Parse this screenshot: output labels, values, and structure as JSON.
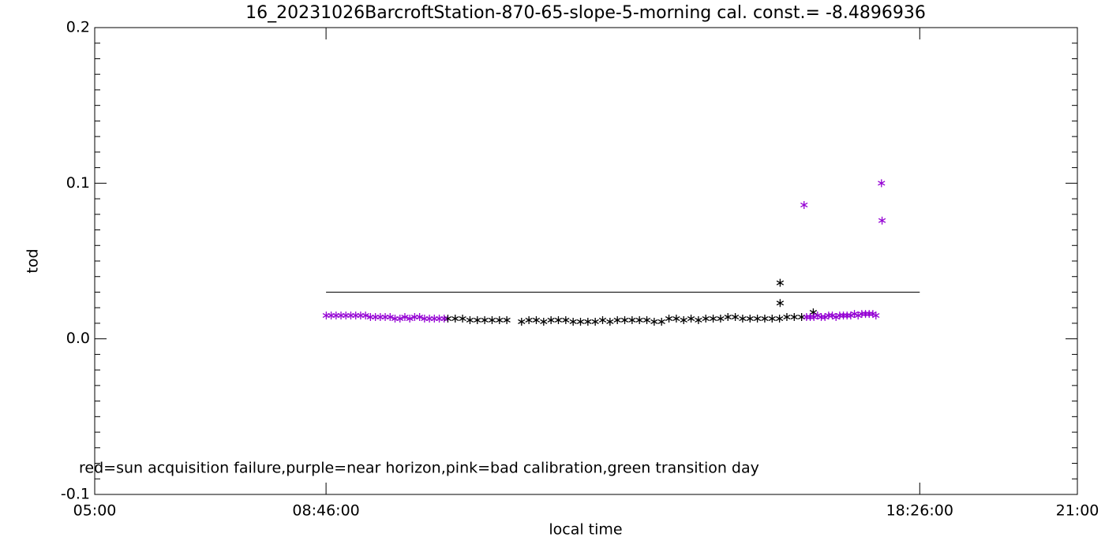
{
  "chart_data": {
    "type": "scatter",
    "title": "16_20231026BarcroftStation-870-65-slope-5-morning cal. const.= -8.4896936",
    "x_label": "local time",
    "y_label": "tod",
    "annotation": "red=sun acquisition failure,purple=near horizon,pink=bad calibration,green transition day",
    "xlim": [
      5,
      21
    ],
    "xticks": [
      {
        "value": 5,
        "label": "05:00"
      },
      {
        "value": 8.7667,
        "label": "08:46:00"
      },
      {
        "value": 18.4333,
        "label": "18:26:00"
      },
      {
        "value": 21,
        "label": "21:00"
      }
    ],
    "ylim": [
      -0.1,
      0.2
    ],
    "yticks": [
      -0.1,
      {
        "value": 0,
        "label": "0.0"
      },
      0.1,
      0.2
    ],
    "reference_line": {
      "x": [
        8.7667,
        18.4333
      ],
      "y": 0.03,
      "color": "#000000"
    },
    "series": [
      {
        "color": "#000000",
        "x": [
          10.75,
          10.87,
          10.99,
          11.11,
          11.23,
          11.35,
          11.47,
          11.59,
          11.71,
          11.95,
          12.07,
          12.19,
          12.31,
          12.43,
          12.55,
          12.67,
          12.79,
          12.91,
          13.03,
          13.15,
          13.27,
          13.39,
          13.51,
          13.63,
          13.75,
          13.87,
          13.99,
          14.11,
          14.23,
          14.35,
          14.47,
          14.59,
          14.71,
          14.83,
          14.95,
          15.07,
          15.19,
          15.31,
          15.43,
          15.55,
          15.67,
          15.79,
          15.91,
          16.03,
          16.15,
          16.27,
          16.39,
          16.51,
          16.16,
          16.16,
          16.7
        ],
        "values": [
          0.013,
          0.013,
          0.013,
          0.012,
          0.012,
          0.012,
          0.012,
          0.012,
          0.012,
          0.011,
          0.012,
          0.012,
          0.011,
          0.012,
          0.012,
          0.012,
          0.011,
          0.011,
          0.011,
          0.011,
          0.012,
          0.011,
          0.012,
          0.012,
          0.012,
          0.012,
          0.012,
          0.011,
          0.011,
          0.013,
          0.013,
          0.012,
          0.013,
          0.012,
          0.013,
          0.013,
          0.013,
          0.014,
          0.014,
          0.013,
          0.013,
          0.013,
          0.013,
          0.013,
          0.013,
          0.014,
          0.014,
          0.014,
          0.036,
          0.023,
          0.017
        ]
      },
      {
        "color": "#9400d3",
        "x": [
          8.77,
          8.85,
          8.93,
          9.01,
          9.09,
          9.17,
          9.25,
          9.33,
          9.41,
          9.49,
          9.57,
          9.65,
          9.73,
          9.81,
          9.89,
          9.97,
          10.05,
          10.13,
          10.21,
          10.29,
          10.37,
          10.45,
          10.53,
          10.61,
          10.69,
          16.59,
          16.65,
          16.71,
          16.77,
          16.83,
          16.89,
          16.95,
          17.01,
          17.07,
          17.13,
          17.19,
          17.25,
          17.31,
          17.37,
          17.43,
          17.49,
          17.55,
          17.61,
          17.67,
          17.72,
          16.55,
          17.81,
          17.82
        ],
        "values": [
          0.015,
          0.015,
          0.015,
          0.015,
          0.015,
          0.015,
          0.015,
          0.015,
          0.015,
          0.014,
          0.014,
          0.014,
          0.014,
          0.014,
          0.013,
          0.013,
          0.014,
          0.013,
          0.014,
          0.014,
          0.013,
          0.013,
          0.013,
          0.013,
          0.013,
          0.014,
          0.014,
          0.014,
          0.015,
          0.014,
          0.014,
          0.015,
          0.015,
          0.014,
          0.015,
          0.015,
          0.015,
          0.015,
          0.016,
          0.015,
          0.016,
          0.016,
          0.016,
          0.016,
          0.015,
          0.086,
          0.1,
          0.076
        ]
      }
    ]
  }
}
